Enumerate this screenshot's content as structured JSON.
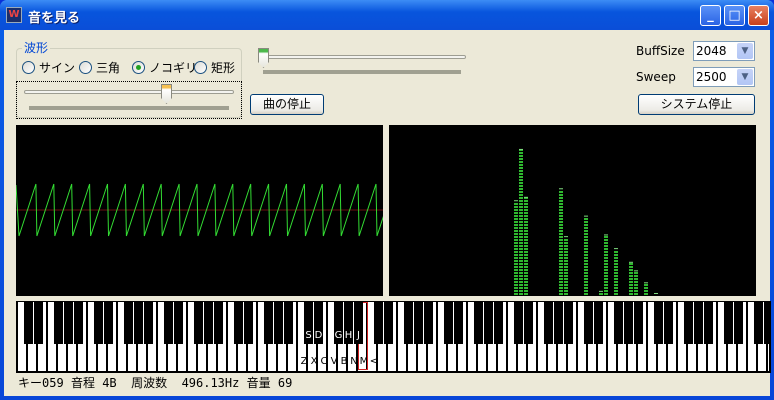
{
  "window": {
    "title": "音を見る",
    "app_icon": "waveform-app-icon",
    "controls": [
      "minimize",
      "maximize",
      "close"
    ]
  },
  "waveform_group": {
    "label": "波形",
    "options": [
      {
        "label": "サイン",
        "selected": false
      },
      {
        "label": "三角",
        "selected": false
      },
      {
        "label": "ノコギリ",
        "selected": true
      },
      {
        "label": "矩形",
        "selected": false
      }
    ],
    "slider_value_fraction": 0.69
  },
  "top_slider": {
    "value_fraction": 0.0
  },
  "stop_song_button": "曲の停止",
  "buffsize": {
    "label": "BuffSize",
    "value": "2048"
  },
  "sweep": {
    "label": "Sweep",
    "value": "2500"
  },
  "stop_system_button": "システム停止",
  "colors": {
    "trace": "#33dd33",
    "center_line": "#6a1010",
    "highlight_key": "#d02020",
    "spectrum": "#2fb82f"
  },
  "oscilloscope": {
    "waveform": "sawtooth",
    "periods_visible": 20.5
  },
  "spectrum": {
    "bars": [
      {
        "bin": 0,
        "level": 0.56
      },
      {
        "bin": 1,
        "level": 0.86
      },
      {
        "bin": 2,
        "level": 0.58
      },
      {
        "bin": 9,
        "level": 0.63
      },
      {
        "bin": 10,
        "level": 0.35
      },
      {
        "bin": 14,
        "level": 0.47
      },
      {
        "bin": 17,
        "level": 0.03
      },
      {
        "bin": 18,
        "level": 0.36
      },
      {
        "bin": 20,
        "level": 0.28
      },
      {
        "bin": 23,
        "level": 0.2
      },
      {
        "bin": 24,
        "level": 0.15
      },
      {
        "bin": 26,
        "level": 0.08
      },
      {
        "bin": 28,
        "level": 0.01
      }
    ]
  },
  "keyboard": {
    "black_labels": {
      "S": "S",
      "D": "D",
      "G": "G",
      "H": "H",
      "J": "J"
    },
    "white_labels": [
      "Z",
      "X",
      "C",
      "V",
      "B",
      "N",
      "M",
      "<"
    ],
    "pressed_white_index": 34
  },
  "status": {
    "key_label": "キー",
    "key": "059",
    "interval_label": "音程",
    "interval": "4B",
    "freq_label": "周波数",
    "freq": "496.13Hz",
    "volume_label": "音量",
    "volume": "69"
  }
}
